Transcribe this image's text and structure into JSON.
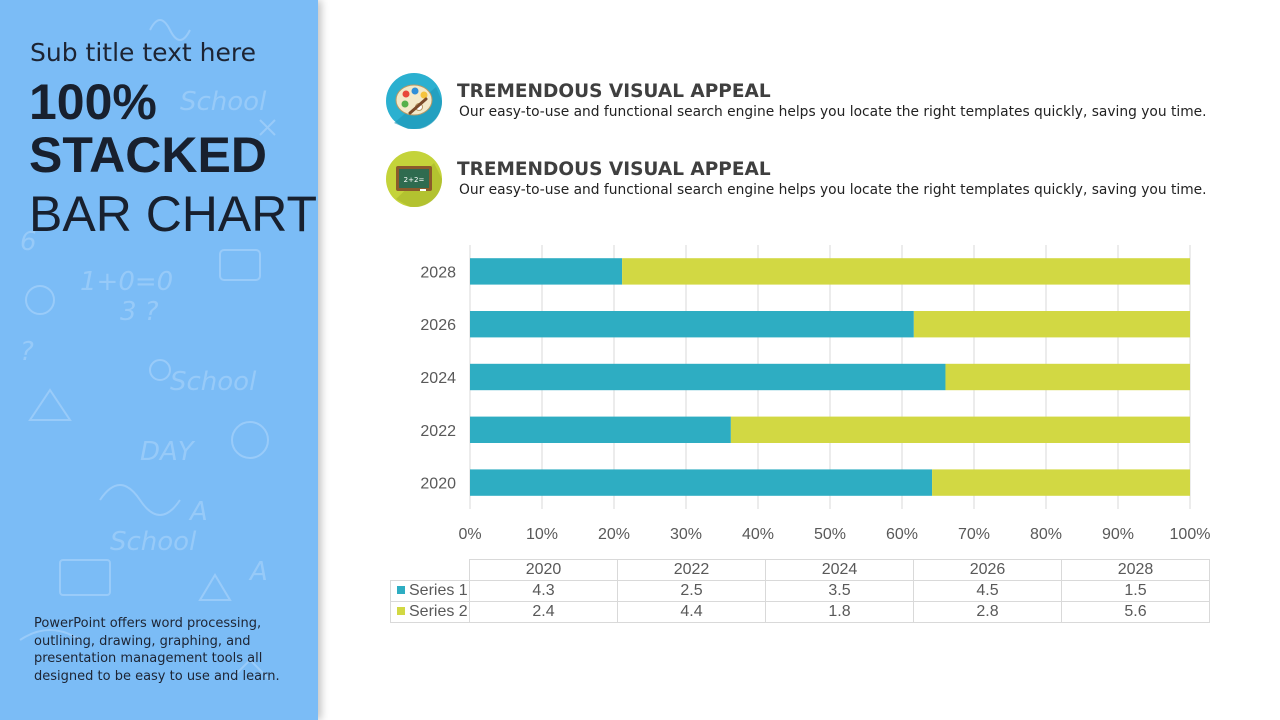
{
  "sidebar": {
    "subtitle": "Sub title text here",
    "title_line1": "100%",
    "title_line2": "STACKED",
    "title_line3": "BAR CHART",
    "description": "PowerPoint offers word processing, outlining, drawing, graphing, and presentation management tools all designed to be easy to use and learn."
  },
  "features": [
    {
      "title": "TREMENDOUS VISUAL APPEAL",
      "description": "Our easy-to-use and functional search engine helps you locate the right templates quickly, saving you time.",
      "icon": "palette-icon"
    },
    {
      "title": "TREMENDOUS VISUAL APPEAL",
      "description": "Our easy-to-use and functional search engine helps you locate the right templates quickly, saving you time.",
      "icon": "chalkboard-icon"
    }
  ],
  "colors": {
    "series1": "#2eadc2",
    "series2": "#d2d843",
    "sidebar": "#7bbcf6",
    "icon1_bg": "#2bb0d0",
    "icon2_bg": "#c4d33a"
  },
  "chart_data": {
    "type": "bar",
    "orientation": "horizontal",
    "stacking": "percent",
    "categories": [
      "2020",
      "2022",
      "2024",
      "2026",
      "2028"
    ],
    "series": [
      {
        "name": "Series 1",
        "values": [
          4.3,
          2.5,
          3.5,
          4.5,
          1.5
        ]
      },
      {
        "name": "Series 2",
        "values": [
          2.4,
          4.4,
          1.8,
          2.8,
          5.6
        ]
      }
    ],
    "x_ticks": [
      "0%",
      "10%",
      "20%",
      "30%",
      "40%",
      "50%",
      "60%",
      "70%",
      "80%",
      "90%",
      "100%"
    ],
    "xlim": [
      0,
      100
    ],
    "grid": true,
    "data_table": true
  }
}
